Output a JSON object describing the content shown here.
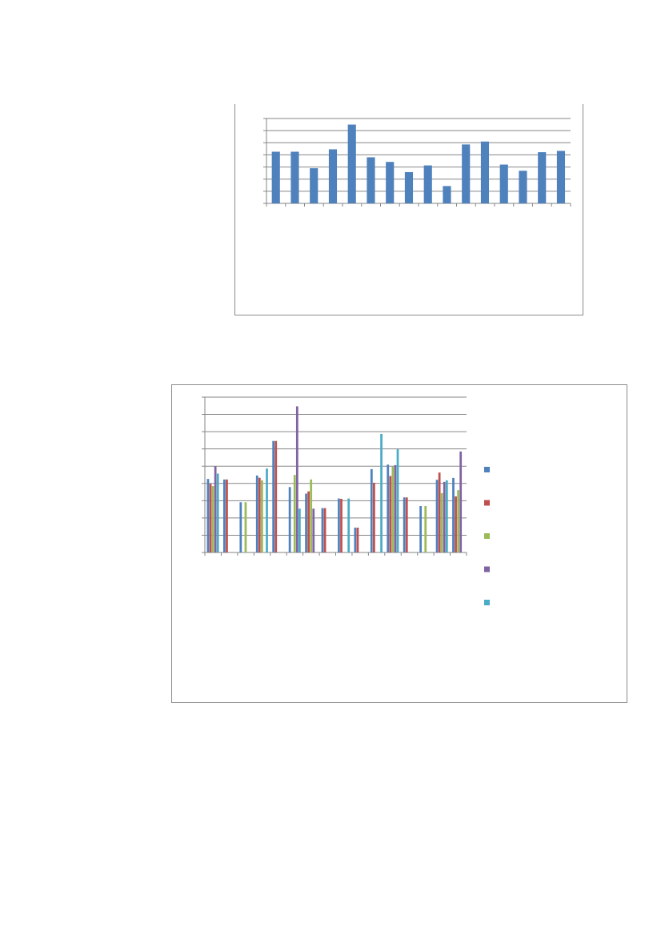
{
  "chart_data": [
    {
      "type": "bar",
      "grid": true,
      "ylim": [
        0,
        7
      ],
      "categories": [
        "",
        "",
        "",
        "",
        "",
        "",
        "",
        "",
        "",
        "",
        "",
        "",
        "",
        "",
        "",
        ""
      ],
      "series": [
        {
          "color": "#4f81bd",
          "values": [
            4.26,
            4.26,
            2.9,
            4.46,
            6.5,
            3.8,
            3.42,
            2.58,
            3.13,
            1.43,
            4.86,
            5.1,
            3.2,
            2.69,
            4.22,
            4.33
          ]
        }
      ]
    },
    {
      "type": "bar",
      "grid": true,
      "ylim": [
        0,
        9
      ],
      "legend": "right",
      "categories": [
        "",
        "",
        "",
        "",
        "",
        "",
        "",
        "",
        "",
        "",
        "",
        "",
        "",
        "",
        "",
        ""
      ],
      "series": [
        {
          "color": "#4f81bd",
          "values": [
            4.26,
            4.23,
            2.91,
            4.46,
            6.46,
            3.79,
            3.41,
            2.57,
            3.13,
            1.44,
            4.83,
            5.09,
            3.19,
            2.69,
            4.21,
            4.32
          ]
        },
        {
          "color": "#c0504d",
          "values": [
            3.98,
            4.23,
            null,
            4.33,
            6.46,
            null,
            3.54,
            2.57,
            3.11,
            1.44,
            4.04,
            4.43,
            3.19,
            null,
            4.63,
            3.25
          ]
        },
        {
          "color": "#9bbb59",
          "values": [
            3.85,
            null,
            2.91,
            4.18,
            null,
            4.49,
            4.23,
            null,
            null,
            null,
            null,
            4.97,
            null,
            2.69,
            3.44,
            3.61
          ]
        },
        {
          "color": "#8064a2",
          "values": [
            5.0,
            null,
            null,
            null,
            null,
            8.47,
            2.54,
            null,
            null,
            null,
            null,
            5.06,
            null,
            null,
            4.09,
            5.85
          ]
        },
        {
          "color": "#4bacc6",
          "values": [
            4.57,
            null,
            null,
            4.86,
            null,
            2.54,
            null,
            null,
            3.13,
            null,
            6.87,
            5.98,
            null,
            null,
            4.18,
            null
          ]
        }
      ]
    }
  ]
}
